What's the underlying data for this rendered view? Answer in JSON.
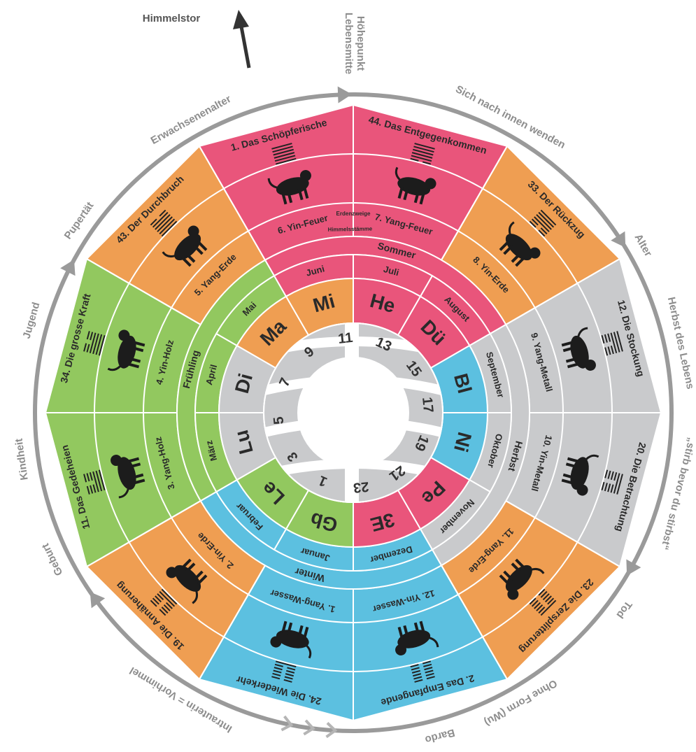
{
  "title": "Himmelstor",
  "midlife": [
    "Höhepunkt",
    "Lebensmitte"
  ],
  "life_stages": [
    "Sich nach innen wenden",
    "Alter",
    "Herbst des Lebens",
    "„stirb bevor du stirbst“",
    "Tod",
    "Ohne Form (Wu)",
    "Bardo",
    "Intrauterin = Vorhimmel",
    "Geburt",
    "Kindheit",
    "Jugend",
    "Pupertät",
    "Erwachsenenalter"
  ],
  "hexagrams": [
    "44. Das Entgegenkommen",
    "33. Der Rückzug",
    "12. Die Stockung",
    "20. Die Betrachtung",
    "23. Die Zersplitterung",
    "2. Das Empfangende",
    "24. Die Wiederkehr",
    "19. Die Annäherung",
    "11. Das Gedeheien",
    "34. Die grosse Kraft",
    "43. Der Durchbruch",
    "1. Das Schöpferische"
  ],
  "stems": [
    "7. Yang-Feuer",
    "8. Yin-Erde",
    "9. Yang-Metall",
    "10. Yin-Metall",
    "11. Yang-Erde",
    "12. Yin-Wasser",
    "1. Yang-Wasser",
    "2. Yin-Erde",
    "3. Yang-Holz",
    "4. Yin-Holz",
    "5. Yang-Erde",
    "6. Yin-Feuer"
  ],
  "ring_labels": {
    "earthly_branches": "Erdenzweige",
    "heavenly_stems": "Himmelsstämme"
  },
  "seasons": [
    "Sommer",
    "Herbst",
    "Winter",
    "Frühling"
  ],
  "months": [
    "Juli",
    "August",
    "September",
    "Oktober",
    "November",
    "Dezember",
    "Januar",
    "Februar",
    "März",
    "April",
    "Mai",
    "Juni"
  ],
  "organs": [
    "He",
    "Dü",
    "Bl",
    "Ni",
    "Pe",
    "3E",
    "Gb",
    "Le",
    "Lu",
    "Di",
    "Ma",
    "Mi"
  ],
  "hours": [
    11,
    13,
    15,
    17,
    19,
    21,
    23,
    1,
    3,
    5,
    7,
    9
  ]
}
